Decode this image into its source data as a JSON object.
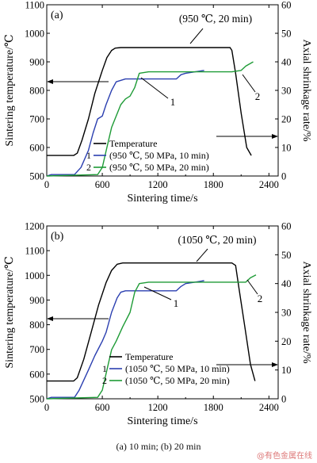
{
  "chart_data": [
    {
      "type": "line",
      "panel_label": "(a)",
      "xlabel": "Sintering time/s",
      "ylabel_left": "Sintering temperature/℃",
      "ylabel_right": "Axial shrinkage rate/%",
      "xlim": [
        0,
        2500
      ],
      "xticks": [
        0,
        600,
        1200,
        1800,
        2400
      ],
      "ylim_left": [
        500,
        1100
      ],
      "yticks_left": [
        500,
        600,
        700,
        800,
        900,
        1000,
        1100
      ],
      "ylim_right": [
        0,
        60
      ],
      "yticks_right": [
        0,
        10,
        20,
        30,
        40,
        50,
        60
      ],
      "annotation": "(950 ℃, 20 min)",
      "curve_labels": [
        "1",
        "2"
      ],
      "legend": [
        {
          "marker": "",
          "text": "Temperature"
        },
        {
          "marker": "1",
          "text": "(950 ℃, 50 MPa, 10 min)"
        },
        {
          "marker": "2",
          "text": "(950 ℃, 50 MPa, 20 min)"
        }
      ],
      "series": [
        {
          "id": "temperature",
          "axis": "left",
          "color": "#000000",
          "x": [
            0,
            290,
            330,
            380,
            450,
            520,
            600,
            650,
            700,
            740,
            800,
            900,
            1200,
            1600,
            1900,
            1980,
            2000,
            2040,
            2100,
            2160,
            2210
          ],
          "y": [
            572,
            572,
            580,
            625,
            700,
            790,
            870,
            915,
            940,
            948,
            950,
            950,
            950,
            950,
            950,
            950,
            940,
            860,
            720,
            600,
            572
          ]
        },
        {
          "id": "shrinkage-10min",
          "axis": "right",
          "color": "#2b3fb0",
          "x": [
            0,
            50,
            300,
            370,
            450,
            500,
            550,
            600,
            640,
            700,
            750,
            850,
            1000,
            1400,
            1450,
            1500,
            1700
          ],
          "y": [
            0,
            0.5,
            0.5,
            3,
            9,
            15,
            20,
            21,
            25,
            30,
            33,
            34,
            34,
            34,
            35.5,
            36,
            37
          ]
        },
        {
          "id": "shrinkage-20min",
          "axis": "right",
          "color": "#1e9b36",
          "x": [
            0,
            550,
            600,
            650,
            700,
            800,
            850,
            900,
            950,
            1000,
            1100,
            1500,
            2000,
            2100,
            2150,
            2230
          ],
          "y": [
            0,
            0.5,
            3,
            10,
            17,
            25,
            27,
            28,
            31,
            36,
            36.5,
            36.5,
            36.5,
            37,
            38.5,
            40
          ]
        }
      ]
    },
    {
      "type": "line",
      "panel_label": "(b)",
      "xlabel": "Sintering time/s",
      "ylabel_left": "Sintering temperature/℃",
      "ylabel_right": "Axial shrinkage rate/%",
      "xlim": [
        0,
        2500
      ],
      "xticks": [
        0,
        600,
        1200,
        1800,
        2400
      ],
      "ylim_left": [
        500,
        1200
      ],
      "yticks_left": [
        500,
        600,
        700,
        800,
        900,
        1000,
        1100,
        1200
      ],
      "ylim_right": [
        0,
        60
      ],
      "yticks_right": [
        0,
        10,
        20,
        30,
        40,
        50,
        60
      ],
      "annotation": "(1050 ℃, 20 min)",
      "curve_labels": [
        "1",
        "2"
      ],
      "legend": [
        {
          "marker": "",
          "text": "Temperature"
        },
        {
          "marker": "1",
          "text": "(1050 ℃, 50 MPa, 10 min)"
        },
        {
          "marker": "2",
          "text": "(1050 ℃, 50 MPa, 20 min)"
        }
      ],
      "series": [
        {
          "id": "temperature",
          "axis": "left",
          "color": "#000000",
          "x": [
            0,
            290,
            330,
            400,
            480,
            560,
            640,
            700,
            760,
            820,
            900,
            1200,
            1700,
            2000,
            2040,
            2080,
            2140,
            2200,
            2250
          ],
          "y": [
            572,
            572,
            585,
            660,
            770,
            880,
            970,
            1020,
            1045,
            1050,
            1050,
            1050,
            1050,
            1050,
            1040,
            940,
            790,
            640,
            572
          ]
        },
        {
          "id": "shrinkage-10min",
          "axis": "right",
          "color": "#2b3fb0",
          "x": [
            0,
            50,
            300,
            350,
            450,
            520,
            600,
            640,
            700,
            760,
            800,
            850,
            1000,
            1400,
            1450,
            1500,
            1600,
            1700
          ],
          "y": [
            0,
            0.5,
            0.5,
            3,
            10,
            15,
            20,
            23,
            30,
            35,
            37,
            37.5,
            37.5,
            37.5,
            39,
            40,
            40.5,
            41
          ]
        },
        {
          "id": "shrinkage-20min",
          "axis": "right",
          "color": "#1e9b36",
          "x": [
            0,
            550,
            600,
            650,
            700,
            750,
            820,
            900,
            950,
            1000,
            1100,
            1500,
            2000,
            2150,
            2200,
            2260
          ],
          "y": [
            0,
            0.5,
            3,
            10,
            17,
            20,
            25,
            30,
            37,
            40,
            40.5,
            40.5,
            40.5,
            40.5,
            42,
            43
          ]
        }
      ]
    }
  ],
  "caption": "(a) 10 min; (b) 20 min",
  "watermark": "@有色金属在线"
}
